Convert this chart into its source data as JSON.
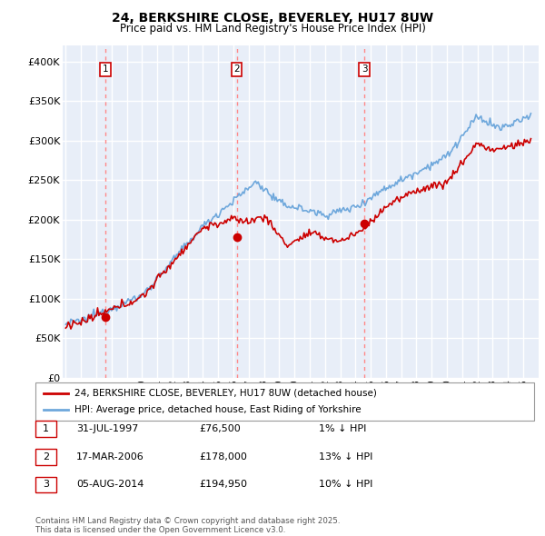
{
  "title": "24, BERKSHIRE CLOSE, BEVERLEY, HU17 8UW",
  "subtitle": "Price paid vs. HM Land Registry's House Price Index (HPI)",
  "ylabel_ticks": [
    "£0",
    "£50K",
    "£100K",
    "£150K",
    "£200K",
    "£250K",
    "£300K",
    "£350K",
    "£400K"
  ],
  "ylim": [
    0,
    420000
  ],
  "ytick_values": [
    0,
    50000,
    100000,
    150000,
    200000,
    250000,
    300000,
    350000,
    400000
  ],
  "sale_dates": [
    1997.58,
    2006.21,
    2014.6
  ],
  "sale_prices": [
    76500,
    178000,
    194950
  ],
  "sale_labels": [
    "1",
    "2",
    "3"
  ],
  "legend_line1": "24, BERKSHIRE CLOSE, BEVERLEY, HU17 8UW (detached house)",
  "legend_line2": "HPI: Average price, detached house, East Riding of Yorkshire",
  "table_rows": [
    [
      "1",
      "31-JUL-1997",
      "£76,500",
      "1% ↓ HPI"
    ],
    [
      "2",
      "17-MAR-2006",
      "£178,000",
      "13% ↓ HPI"
    ],
    [
      "3",
      "05-AUG-2014",
      "£194,950",
      "10% ↓ HPI"
    ]
  ],
  "footnote": "Contains HM Land Registry data © Crown copyright and database right 2025.\nThis data is licensed under the Open Government Licence v3.0.",
  "hpi_color": "#6fa8dc",
  "price_color": "#cc0000",
  "bg_color": "#e8eef8",
  "grid_color": "#ffffff",
  "dashed_line_color": "#ff8888"
}
